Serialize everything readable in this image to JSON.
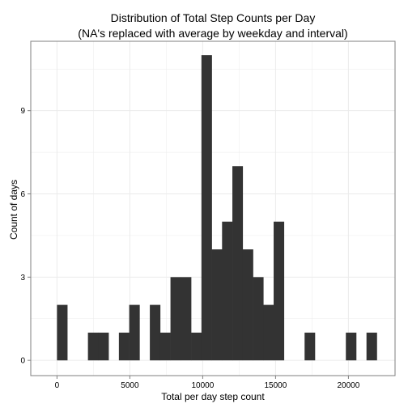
{
  "chart_data": {
    "type": "bar",
    "title": "Distribution of Total Step Counts per Day",
    "subtitle": "(NA's replaced with average by weekday and interval)",
    "xlabel": "Total per day step count",
    "ylabel": "Count of days",
    "xlim": [
      -1800,
      23200
    ],
    "ylim": [
      -0.55,
      11.5
    ],
    "xticks": [
      0,
      5000,
      10000,
      15000,
      20000
    ],
    "yticks": [
      0,
      3,
      6,
      9
    ],
    "xtick_labels": [
      "0",
      "5000",
      "10000",
      "15000",
      "20000"
    ],
    "ytick_labels": [
      "0",
      "3",
      "6",
      "9"
    ],
    "bin_width": 708,
    "bin_starts": [
      0,
      2124,
      2832,
      4248,
      4956,
      6372,
      7080,
      7788,
      8496,
      9204,
      9912,
      10620,
      11328,
      12036,
      12744,
      13452,
      14160,
      14868,
      16992,
      19824,
      21240
    ],
    "values": [
      2,
      1,
      1,
      1,
      2,
      2,
      1,
      3,
      3,
      1,
      11,
      4,
      5,
      7,
      4,
      3,
      2,
      5,
      1,
      1,
      1
    ],
    "grid": true,
    "bar_color": "#333333",
    "grid_color": "#ebebeb",
    "panel_border_color": "#7f7f7f"
  }
}
